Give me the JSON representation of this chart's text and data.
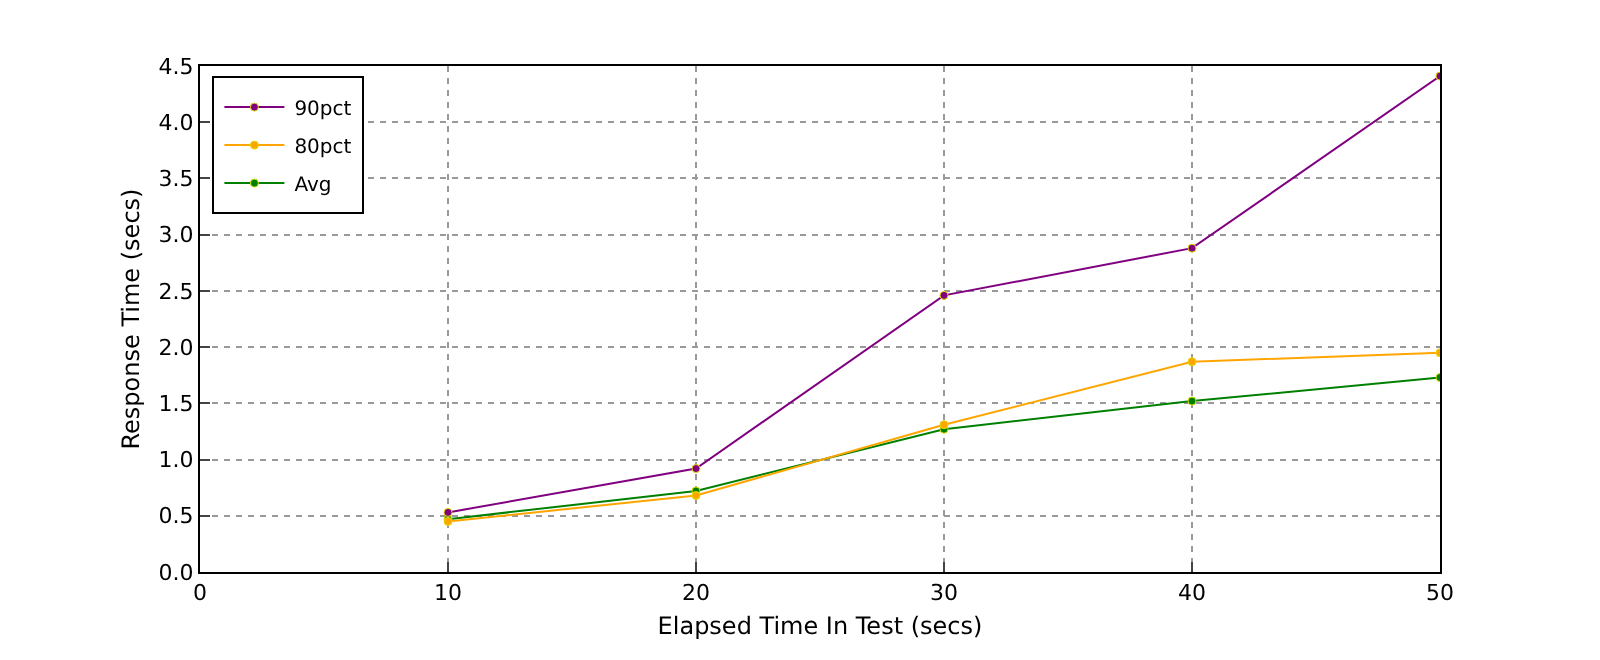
{
  "chart_data": {
    "type": "line",
    "xlabel": "Elapsed Time In Test (secs)",
    "ylabel": "Response Time (secs)",
    "x": [
      10,
      20,
      30,
      40,
      50
    ],
    "series": [
      {
        "name": "90pct",
        "color": "#800080",
        "values": [
          0.53,
          0.92,
          2.46,
          2.88,
          4.41
        ]
      },
      {
        "name": "80pct",
        "color": "#ffa500",
        "values": [
          0.45,
          0.68,
          1.31,
          1.87,
          1.95
        ]
      },
      {
        "name": "Avg",
        "color": "#008000",
        "values": [
          0.47,
          0.72,
          1.27,
          1.52,
          1.73
        ]
      }
    ],
    "xlim": [
      0,
      50
    ],
    "xticks": [
      0,
      10,
      20,
      30,
      40,
      50
    ],
    "ylim": [
      0,
      4.5
    ],
    "yticks": [
      {
        "value": 0,
        "label": "0.0"
      },
      0.5,
      {
        "value": 1,
        "label": "1.0"
      },
      1.5,
      {
        "value": 2,
        "label": "2.0"
      },
      2.5,
      {
        "value": 3,
        "label": "3.0"
      },
      3.5,
      {
        "value": 4,
        "label": "4.0"
      },
      4.5
    ],
    "grid": true,
    "legend": "top left",
    "marker": "circle",
    "line_style": "solid"
  }
}
